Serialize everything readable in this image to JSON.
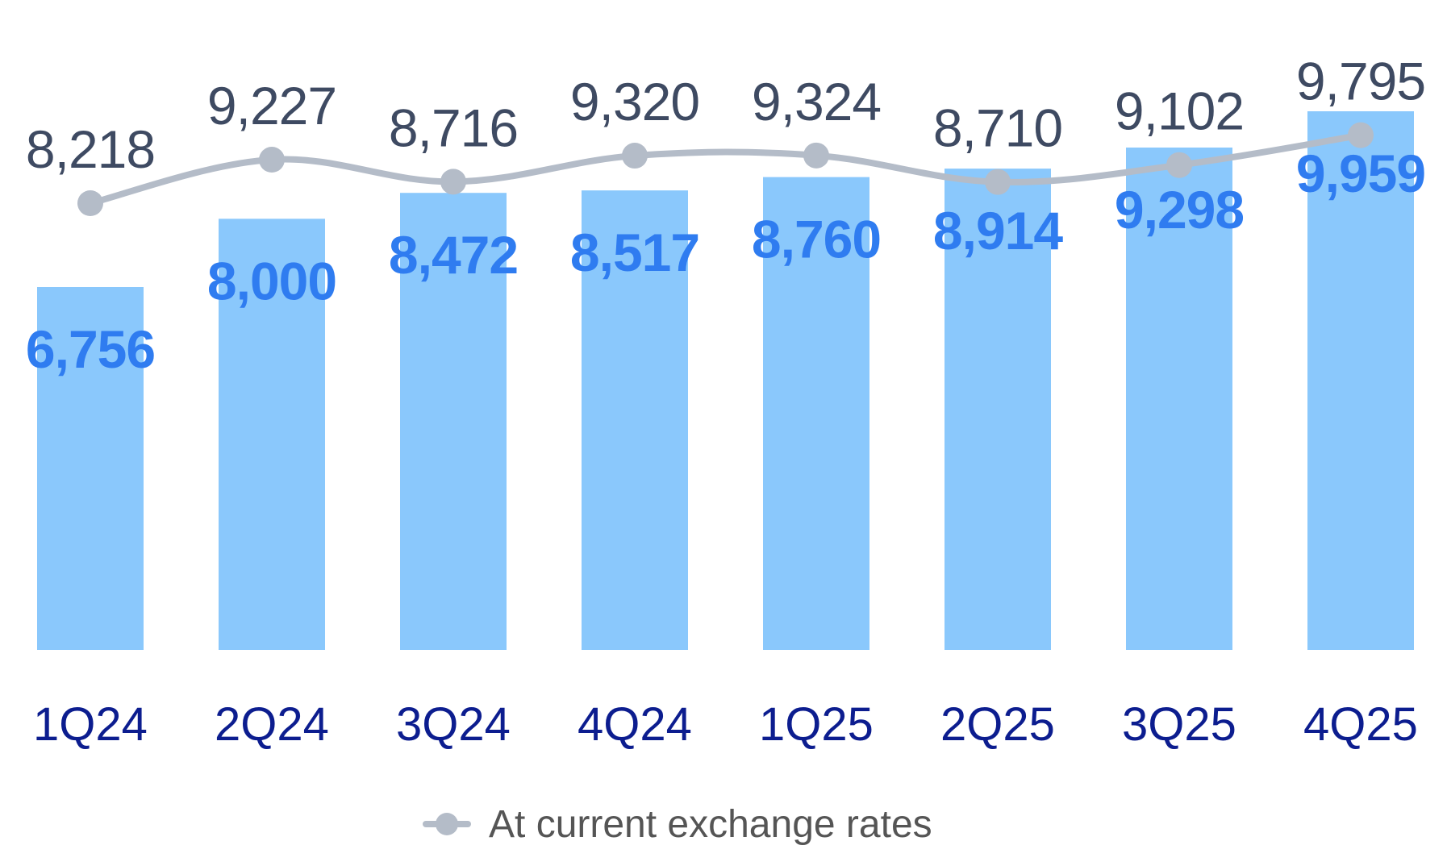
{
  "chart_data": {
    "type": "bar",
    "categories": [
      "1Q24",
      "2Q24",
      "3Q24",
      "4Q24",
      "1Q25",
      "2Q25",
      "3Q25",
      "4Q25"
    ],
    "series": [
      {
        "type": "bar",
        "values": [
          6756,
          8000,
          8472,
          8517,
          8760,
          8914,
          9298,
          9959
        ],
        "labels": [
          "6,756",
          "8,000",
          "8,472",
          "8,517",
          "8,760",
          "8,914",
          "9,298",
          "9,959"
        ],
        "color": "#8ac8fc",
        "label_color": "#2f7cf0"
      },
      {
        "type": "line",
        "name": "At current exchange rates",
        "values": [
          8218,
          9227,
          8716,
          9320,
          9324,
          8710,
          9102,
          9795
        ],
        "labels": [
          "8,218",
          "9,227",
          "8,716",
          "9,320",
          "9,324",
          "8,710",
          "9,102",
          "9,795"
        ],
        "color": "#b4bcc8",
        "label_color": "#3e4a62"
      }
    ],
    "ylim": [
      0,
      12000
    ],
    "grid": false,
    "legend": {
      "position": "bottom-center",
      "items": [
        "At current exchange rates"
      ]
    },
    "colors": {
      "tick": "#0c1d8f"
    }
  }
}
